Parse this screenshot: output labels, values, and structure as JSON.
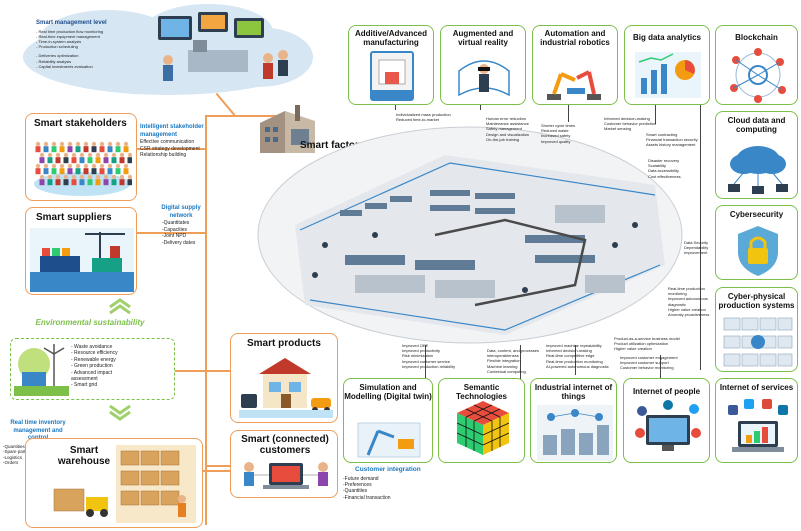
{
  "smart_management": {
    "title": "Smart management level",
    "items": [
      "- Real time production flow monitoring",
      "- Real-time equipment management",
      "- Time-in-system analysis",
      "- Production scheduling",
      "",
      "- Deliveries optimization",
      "- Reliability analysis",
      "- Capital investments evaluation"
    ]
  },
  "smart_stakeholders": {
    "title": "Smart stakeholders",
    "label": "Intelligent stakeholder management",
    "items": [
      "Effective communication",
      "CSR strategy development",
      "Relationship building"
    ]
  },
  "smart_suppliers": {
    "title": "Smart suppliers",
    "label": "Digital supply network",
    "items": [
      "-Quantitates",
      "-Capacities",
      "-Joint NPD",
      "-Delivery dates"
    ]
  },
  "environmental": {
    "title": "Environmental sustainability",
    "items": [
      "- Waste avoidance",
      "- Resource efficiency",
      "- Renewable energy",
      "- Green production",
      "- Advanced impact",
      "  assessment",
      "- Smart grid"
    ]
  },
  "smart_warehouse": {
    "title": "Smart warehouse",
    "label": "Real time inventory management and control",
    "items": [
      "-Quantities",
      "-Spare parts",
      "-Logistics",
      "-Orders"
    ]
  },
  "smart_factory": {
    "title": "Smart factory"
  },
  "smart_products": {
    "title": "Smart products"
  },
  "smart_customers": {
    "title": "Smart (connected) customers",
    "label": "Customer integration",
    "items": [
      "-Future demand",
      "-Preferences",
      "-Quantities",
      "-Financial transaction"
    ]
  },
  "top_tech": [
    {
      "title": "Additive/Advanced manufacturing",
      "items": [
        "Individualized mass production",
        "Reduced time-to-market"
      ]
    },
    {
      "title": "Augmented and virtual reality",
      "items": [
        "Human error reduction",
        "Maintenance assistance",
        "Safety management",
        "Design and visualization",
        "On-the-job training"
      ]
    },
    {
      "title": "Automation and industrial robotics",
      "items": [
        "Shorter cycle times",
        "Reduced waste",
        "Increased safety",
        "Improved quality"
      ]
    },
    {
      "title": "Big data analytics",
      "items": [
        "Informed decision-making",
        "Customer behavior prediction",
        "Market sensing"
      ]
    },
    {
      "title": "Blockchain",
      "items": [
        "Smart contracting",
        "Financial transaction security",
        "Assets history management"
      ]
    }
  ],
  "right_tech": [
    {
      "title": "Cloud data and computing",
      "items": [
        "Disaster recovery",
        "Scalability",
        "Data accessibility",
        "Cost effectiveness"
      ]
    },
    {
      "title": "Cybersecurity",
      "items": [
        "Data Security",
        "Dependability",
        "Improvement"
      ]
    },
    {
      "title": "Cyber-physical production systems",
      "items": [
        "Real-time production",
        "monitoring",
        "Improved autonomous",
        "diagnostic",
        "Higher value creation",
        "Anomaly proactiveness"
      ]
    }
  ],
  "bottom_tech": [
    {
      "title": "Simulation and Modelling (Digital twin)",
      "items": [
        "Improved OEE",
        "Improved productivity",
        "Risk minimization",
        "Improved customer service",
        "Improved production reliability"
      ]
    },
    {
      "title": "Semantic Technologies",
      "items": [
        "Data, content, and processes",
        "interoperableness",
        "Flexible integration",
        "Machine learning",
        "Contextual computing"
      ]
    },
    {
      "title": "Industrial internet of things",
      "items": [
        "Improved machine repeatability",
        "Informed decision-making",
        "Real-time competitive edge",
        "Real-time production monitoring",
        "AI-powered autonomous diagnostic"
      ]
    },
    {
      "title": "Internet of people",
      "items": [
        "Improved customer engagement",
        "Improved customer support",
        "Customer behavior monitoring"
      ]
    },
    {
      "title": "Internet of services",
      "items": [
        "Product-as-a-service business model",
        "Product utilization optimization",
        "Higher value creation"
      ]
    }
  ]
}
